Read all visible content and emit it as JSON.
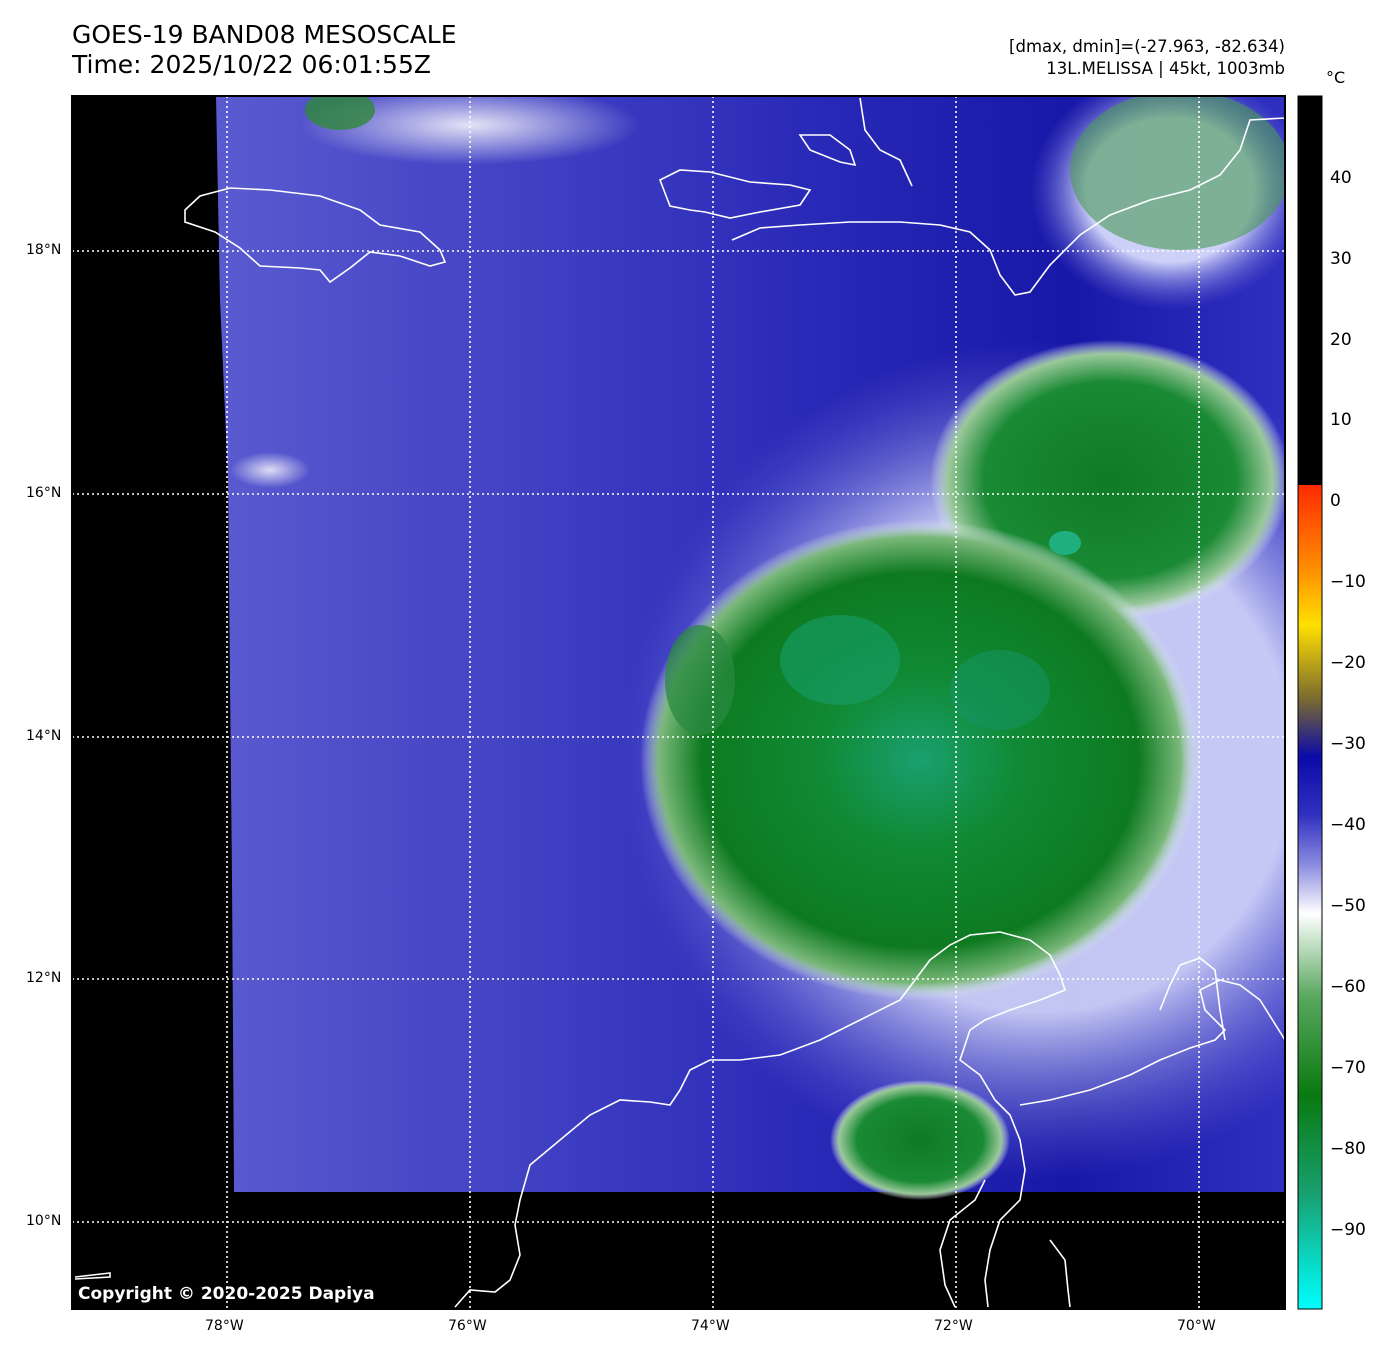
{
  "header": {
    "title_line1": "GOES-19 BAND08 MESOSCALE",
    "title_line2": "Time: 2025/10/22 06:01:55Z",
    "range_text": "[dmax, dmin]=(-27.963, -82.634)",
    "storm_text": "13L.MELISSA | 45kt, 1003mb"
  },
  "colorbar": {
    "unit": "°C",
    "ticks": [
      "40",
      "30",
      "20",
      "10",
      "0",
      "−10",
      "−20",
      "−30",
      "−40",
      "−50",
      "−60",
      "−70",
      "−80",
      "−90"
    ]
  },
  "axes": {
    "lat_labels": [
      "18°N",
      "16°N",
      "14°N",
      "12°N",
      "10°N"
    ],
    "lon_labels": [
      "78°W",
      "76°W",
      "74°W",
      "72°W",
      "70°W"
    ]
  },
  "footer": {
    "copyright": "Copyright © 2020-2025 Dapiya"
  },
  "colors": {
    "clear_sky_blue": "#3a3ac4",
    "cloud_green": "#0f8a2a",
    "coldest_cyan": "#1fd0a0",
    "no_data": "#000000",
    "coastline": "#ffffff"
  }
}
